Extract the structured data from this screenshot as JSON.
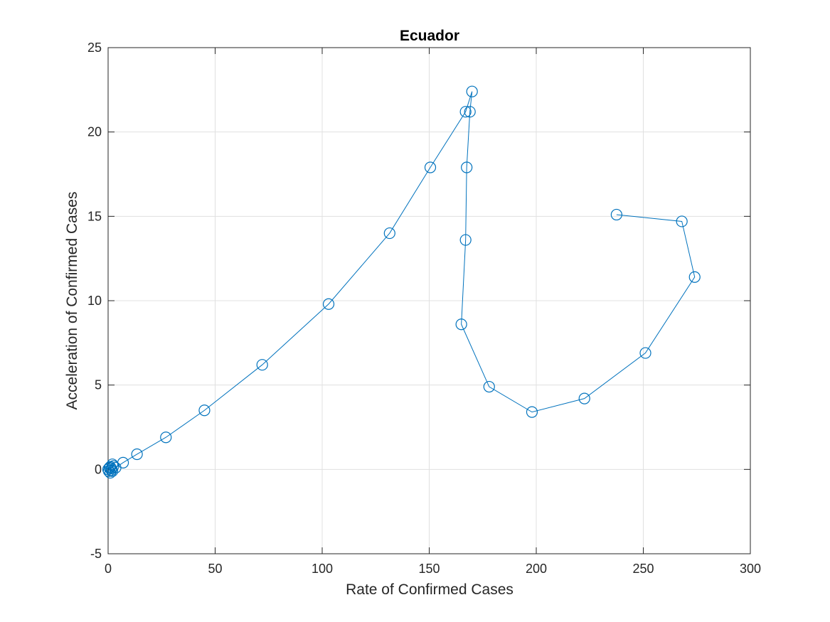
{
  "chart_data": {
    "type": "line",
    "title": "Ecuador",
    "xlabel": "Rate of Confirmed Cases",
    "ylabel": "Acceleration of Confirmed Cases",
    "xlim": [
      0,
      300
    ],
    "ylim": [
      -5,
      25
    ],
    "x_ticks": [
      0,
      50,
      100,
      150,
      200,
      250,
      300
    ],
    "y_ticks": [
      -5,
      0,
      5,
      10,
      15,
      20,
      25
    ],
    "x_tick_labels": [
      "0",
      "50",
      "100",
      "150",
      "200",
      "250",
      "300"
    ],
    "y_tick_labels": [
      "-5",
      "0",
      "5",
      "10",
      "15",
      "20",
      "25"
    ],
    "grid": true,
    "marker": "circle",
    "line_color": "#0072BD",
    "series": [
      {
        "x": [
          0,
          0.3,
          0.6,
          1.0,
          1.5,
          2.0,
          2.5,
          2.0,
          1.0,
          1.5,
          3.5,
          7,
          13.5,
          27,
          45,
          72,
          103,
          131.5,
          150.5,
          167,
          170,
          169,
          167.5,
          167,
          165,
          178,
          198,
          222.5,
          251,
          274,
          268,
          237.5
        ],
        "y": [
          0,
          -0.1,
          0.1,
          -0.2,
          0.05,
          0.3,
          0.2,
          -0.1,
          0.15,
          -0.05,
          0.1,
          0.4,
          0.9,
          1.9,
          3.5,
          6.2,
          9.8,
          14.0,
          17.9,
          21.2,
          22.4,
          21.2,
          17.9,
          13.6,
          8.6,
          4.9,
          3.4,
          4.2,
          6.9,
          11.4,
          14.7,
          15.1
        ]
      }
    ]
  }
}
